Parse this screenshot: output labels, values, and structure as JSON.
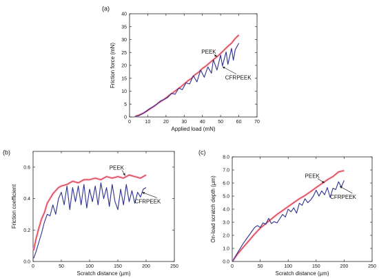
{
  "chart_data": [
    {
      "id": "a",
      "panel_label": "(a)",
      "type": "line",
      "xlabel": "Applied load (mN)",
      "ylabel": "Friction force (mN)",
      "xlim": [
        0,
        70
      ],
      "ylim": [
        0,
        40
      ],
      "xticks": [
        0,
        10,
        20,
        30,
        40,
        50,
        60,
        70
      ],
      "yticks": [
        0,
        5,
        10,
        15,
        20,
        25,
        30,
        35,
        40
      ],
      "grid": false,
      "series": [
        {
          "name": "PEEK",
          "color": "#d03a1e",
          "halo_color": "#ff9ccf",
          "x": [
            3,
            5,
            8,
            10,
            12,
            14,
            16,
            18,
            20,
            22,
            24,
            26,
            28,
            30,
            32,
            34,
            36,
            38,
            40,
            42,
            44,
            46,
            48,
            50,
            52,
            54,
            56,
            58,
            60
          ],
          "y": [
            0.2,
            0.7,
            1.6,
            2.5,
            3.5,
            4.4,
            5.5,
            6.4,
            7.4,
            8.5,
            9.5,
            10.6,
            11.6,
            12.8,
            14.0,
            15.0,
            16.4,
            17.4,
            18.8,
            19.8,
            21.0,
            22.2,
            23.4,
            24.6,
            26.0,
            27.4,
            28.6,
            30.4,
            31.8
          ]
        },
        {
          "name": "CFRPEEK",
          "color": "#2a2f8f",
          "x": [
            3,
            5,
            7,
            9,
            11,
            13,
            15,
            17,
            19,
            21,
            23,
            25,
            27,
            29,
            31,
            33,
            35,
            37,
            39,
            41,
            43,
            45,
            46,
            48,
            50,
            51,
            53,
            54,
            56,
            57,
            58,
            60
          ],
          "y": [
            0.2,
            0.5,
            1.2,
            2.2,
            3.2,
            4.0,
            5.0,
            6.2,
            6.8,
            7.6,
            9.2,
            8.8,
            11.2,
            10.6,
            13.2,
            12.8,
            16.0,
            13.6,
            18.2,
            15.4,
            19.4,
            17.0,
            22.2,
            18.2,
            24.0,
            19.8,
            25.2,
            20.4,
            26.6,
            22.0,
            26.0,
            28.6
          ]
        }
      ],
      "annotations": [
        {
          "text": "PEEK",
          "x": 44,
          "y": 24.5,
          "points_to_x": 48,
          "points_to_y": 23.3
        },
        {
          "text": "CFRPEEK",
          "x": 52.5,
          "y": 14.5,
          "points_to_x": 51,
          "points_to_y": 19.5
        }
      ]
    },
    {
      "id": "b",
      "panel_label": "(b)",
      "type": "line",
      "xlabel": "Scratch distance (µm)",
      "ylabel": "Friction coefficient",
      "xlim": [
        0,
        250
      ],
      "ylim": [
        0,
        0.7
      ],
      "xticks": [
        0,
        50,
        100,
        150,
        200,
        250
      ],
      "yticks": [
        0.0,
        0.2,
        0.4,
        0.6
      ],
      "grid": false,
      "series": [
        {
          "name": "PEEK",
          "color": "#d03a1e",
          "halo_color": "#ff9ccf",
          "x": [
            1,
            5,
            10,
            15,
            20,
            25,
            30,
            35,
            40,
            45,
            50,
            60,
            70,
            80,
            90,
            100,
            110,
            120,
            130,
            140,
            150,
            160,
            170,
            180,
            190,
            200
          ],
          "y": [
            0.07,
            0.14,
            0.21,
            0.27,
            0.31,
            0.37,
            0.4,
            0.43,
            0.45,
            0.47,
            0.48,
            0.49,
            0.51,
            0.5,
            0.52,
            0.52,
            0.53,
            0.52,
            0.54,
            0.53,
            0.54,
            0.53,
            0.55,
            0.54,
            0.53,
            0.55
          ]
        },
        {
          "name": "CFRPEEK",
          "color": "#2a2f8f",
          "x": [
            1,
            5,
            10,
            15,
            20,
            25,
            30,
            35,
            40,
            45,
            50,
            55,
            60,
            65,
            70,
            75,
            80,
            85,
            90,
            95,
            100,
            105,
            110,
            115,
            120,
            125,
            130,
            135,
            140,
            145,
            150,
            155,
            160,
            165,
            170,
            175,
            180,
            185,
            190,
            195,
            200
          ],
          "y": [
            0.02,
            0.06,
            0.12,
            0.18,
            0.25,
            0.3,
            0.29,
            0.36,
            0.3,
            0.4,
            0.44,
            0.36,
            0.48,
            0.33,
            0.47,
            0.38,
            0.48,
            0.36,
            0.49,
            0.34,
            0.46,
            0.38,
            0.48,
            0.36,
            0.5,
            0.4,
            0.47,
            0.35,
            0.49,
            0.38,
            0.33,
            0.46,
            0.36,
            0.49,
            0.38,
            0.45,
            0.37,
            0.44,
            0.41,
            0.46,
            0.47
          ]
        }
      ],
      "annotations": [
        {
          "text": "PEEK",
          "x": 135,
          "y": 0.585,
          "points_to_x": 163,
          "points_to_y": 0.545
        },
        {
          "text": "CFRPEEK",
          "x": 180,
          "y": 0.37,
          "points_to_x": 193,
          "points_to_y": 0.44
        }
      ]
    },
    {
      "id": "c",
      "panel_label": "(c)",
      "type": "line",
      "xlabel": "Scratch distance (µm)",
      "ylabel": "On-load scratch depth (µm)",
      "xlim": [
        0,
        250
      ],
      "ylim": [
        0,
        8
      ],
      "xticks": [
        0,
        50,
        100,
        150,
        200,
        250
      ],
      "yticks": [
        0.0,
        1.0,
        2.0,
        3.0,
        4.0,
        5.0,
        6.0,
        7.0,
        8.0
      ],
      "grid": false,
      "series": [
        {
          "name": "PEEK",
          "color": "#d03a1e",
          "halo_color": "#ff9ccf",
          "x": [
            1,
            10,
            20,
            30,
            40,
            50,
            60,
            70,
            80,
            90,
            100,
            110,
            120,
            130,
            140,
            150,
            160,
            170,
            180,
            190,
            200
          ],
          "y": [
            0.05,
            0.6,
            1.1,
            1.6,
            2.1,
            2.55,
            2.9,
            3.25,
            3.6,
            3.9,
            4.2,
            4.5,
            4.8,
            5.05,
            5.35,
            5.65,
            5.95,
            6.25,
            6.5,
            6.85,
            6.95
          ]
        },
        {
          "name": "CFRPEEK",
          "color": "#2a2f8f",
          "x": [
            1,
            10,
            20,
            30,
            40,
            45,
            50,
            55,
            60,
            65,
            70,
            75,
            80,
            90,
            95,
            100,
            105,
            110,
            115,
            120,
            125,
            130,
            135,
            140,
            145,
            150,
            155,
            160,
            165,
            170,
            175,
            180,
            185,
            190,
            195,
            200
          ],
          "y": [
            0.05,
            0.7,
            1.4,
            2.0,
            2.6,
            2.75,
            2.6,
            2.95,
            2.85,
            3.3,
            2.9,
            3.05,
            2.95,
            3.6,
            3.4,
            4.0,
            3.8,
            4.1,
            3.7,
            4.45,
            4.3,
            4.8,
            4.5,
            4.7,
            5.0,
            5.45,
            5.0,
            5.4,
            5.1,
            5.65,
            4.9,
            5.6,
            5.5,
            6.1,
            5.7,
            6.2
          ]
        }
      ],
      "annotations": [
        {
          "text": "PEEK",
          "x": 130,
          "y": 6.4,
          "points_to_x": 165,
          "points_to_y": 6.0
        },
        {
          "text": "CFRPEEK",
          "x": 175,
          "y": 4.8,
          "points_to_x": 192,
          "points_to_y": 5.75
        }
      ]
    }
  ]
}
